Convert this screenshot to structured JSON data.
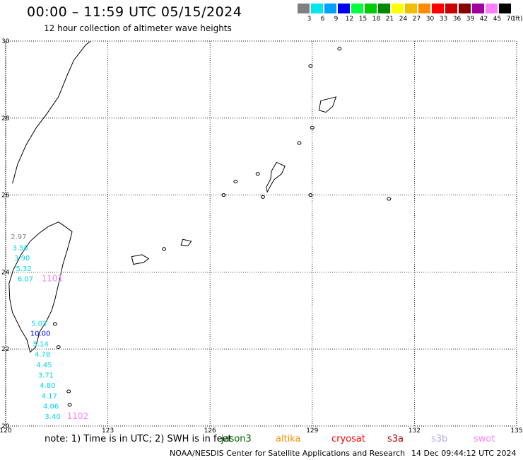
{
  "header": {
    "title": "00:00 – 11:59 UTC 05/15/2024",
    "subtitle": "12 hour collection of altimeter wave heights"
  },
  "legend": {
    "unit": "(ft)",
    "items": [
      {
        "label": "3",
        "color": "#808080"
      },
      {
        "label": "6",
        "color": "#00e5ee"
      },
      {
        "label": "9",
        "color": "#00a0ff"
      },
      {
        "label": "12",
        "color": "#0000ee"
      },
      {
        "label": "15",
        "color": "#00ff40"
      },
      {
        "label": "18",
        "color": "#00cc00"
      },
      {
        "label": "21",
        "color": "#008800"
      },
      {
        "label": "24",
        "color": "#ffff00"
      },
      {
        "label": "27",
        "color": "#f0c000"
      },
      {
        "label": "30",
        "color": "#ff8c00"
      },
      {
        "label": "33",
        "color": "#ff0000"
      },
      {
        "label": "36",
        "color": "#cc0000"
      },
      {
        "label": "39",
        "color": "#880000"
      },
      {
        "label": "42",
        "color": "#a000a0"
      },
      {
        "label": "45",
        "color": "#ff80ff"
      },
      {
        "label": "70",
        "color": "#000000"
      }
    ]
  },
  "map": {
    "lon_range": [
      120,
      135
    ],
    "lat_range": [
      20,
      30
    ],
    "lon_ticks": [
      "120",
      "123",
      "126",
      "129",
      "132",
      "135"
    ],
    "lat_ticks": [
      "30",
      "28",
      "26",
      "24",
      "22",
      "20"
    ],
    "grid": "dotted",
    "swh_readings": [
      {
        "value": "2.97",
        "lon": 120.15,
        "lat": 24.85,
        "color": "#808080"
      },
      {
        "value": "3.58",
        "lon": 120.2,
        "lat": 24.57,
        "color": "#00d8e8"
      },
      {
        "value": "3.90",
        "lon": 120.25,
        "lat": 24.3,
        "color": "#00d8e8"
      },
      {
        "value": "5.32",
        "lon": 120.3,
        "lat": 24.03,
        "color": "#00d8e8"
      },
      {
        "value": "6.07",
        "lon": 120.35,
        "lat": 23.76,
        "color": "#00d8e8"
      },
      {
        "value": "5.03",
        "lon": 120.75,
        "lat": 22.6,
        "color": "#00d8e8"
      },
      {
        "value": "10.00",
        "lon": 120.72,
        "lat": 22.34,
        "color": "#0000ee"
      },
      {
        "value": "5.14",
        "lon": 120.8,
        "lat": 22.07,
        "color": "#00d8e8"
      },
      {
        "value": "4.78",
        "lon": 120.85,
        "lat": 21.8,
        "color": "#00d8e8"
      },
      {
        "value": "4.45",
        "lon": 120.9,
        "lat": 21.53,
        "color": "#00d8e8"
      },
      {
        "value": "3.71",
        "lon": 120.95,
        "lat": 21.26,
        "color": "#00d8e8"
      },
      {
        "value": "4.80",
        "lon": 121.0,
        "lat": 20.99,
        "color": "#00d8e8"
      },
      {
        "value": "4.17",
        "lon": 121.05,
        "lat": 20.72,
        "color": "#00d8e8"
      },
      {
        "value": "4.06",
        "lon": 121.1,
        "lat": 20.45,
        "color": "#00d8e8"
      },
      {
        "value": "3.40",
        "lon": 121.15,
        "lat": 20.18,
        "color": "#00d8e8"
      }
    ],
    "pass_labels": [
      {
        "value": "1101",
        "lon": 121.05,
        "lat": 23.76,
        "color": "#ff80ff"
      },
      {
        "value": "1102",
        "lon": 121.8,
        "lat": 20.18,
        "color": "#ff80ff"
      }
    ]
  },
  "footer": {
    "note": "note:  1) Time is in UTC;  2) SWH is in feet",
    "satellites": [
      {
        "name": "jason3",
        "color": "#006400"
      },
      {
        "name": "altika",
        "color": "#ff8c00"
      },
      {
        "name": "cryosat",
        "color": "#ff0000"
      },
      {
        "name": "s3a",
        "color": "#b00000"
      },
      {
        "name": "s3b",
        "color": "#b8a8f0"
      },
      {
        "name": "swot",
        "color": "#ff80ff"
      }
    ],
    "credit": "NOAA/NESDIS Center for Satellite Applications and Research",
    "timestamp": "14 Dec 09:44:12 UTC 2024"
  }
}
